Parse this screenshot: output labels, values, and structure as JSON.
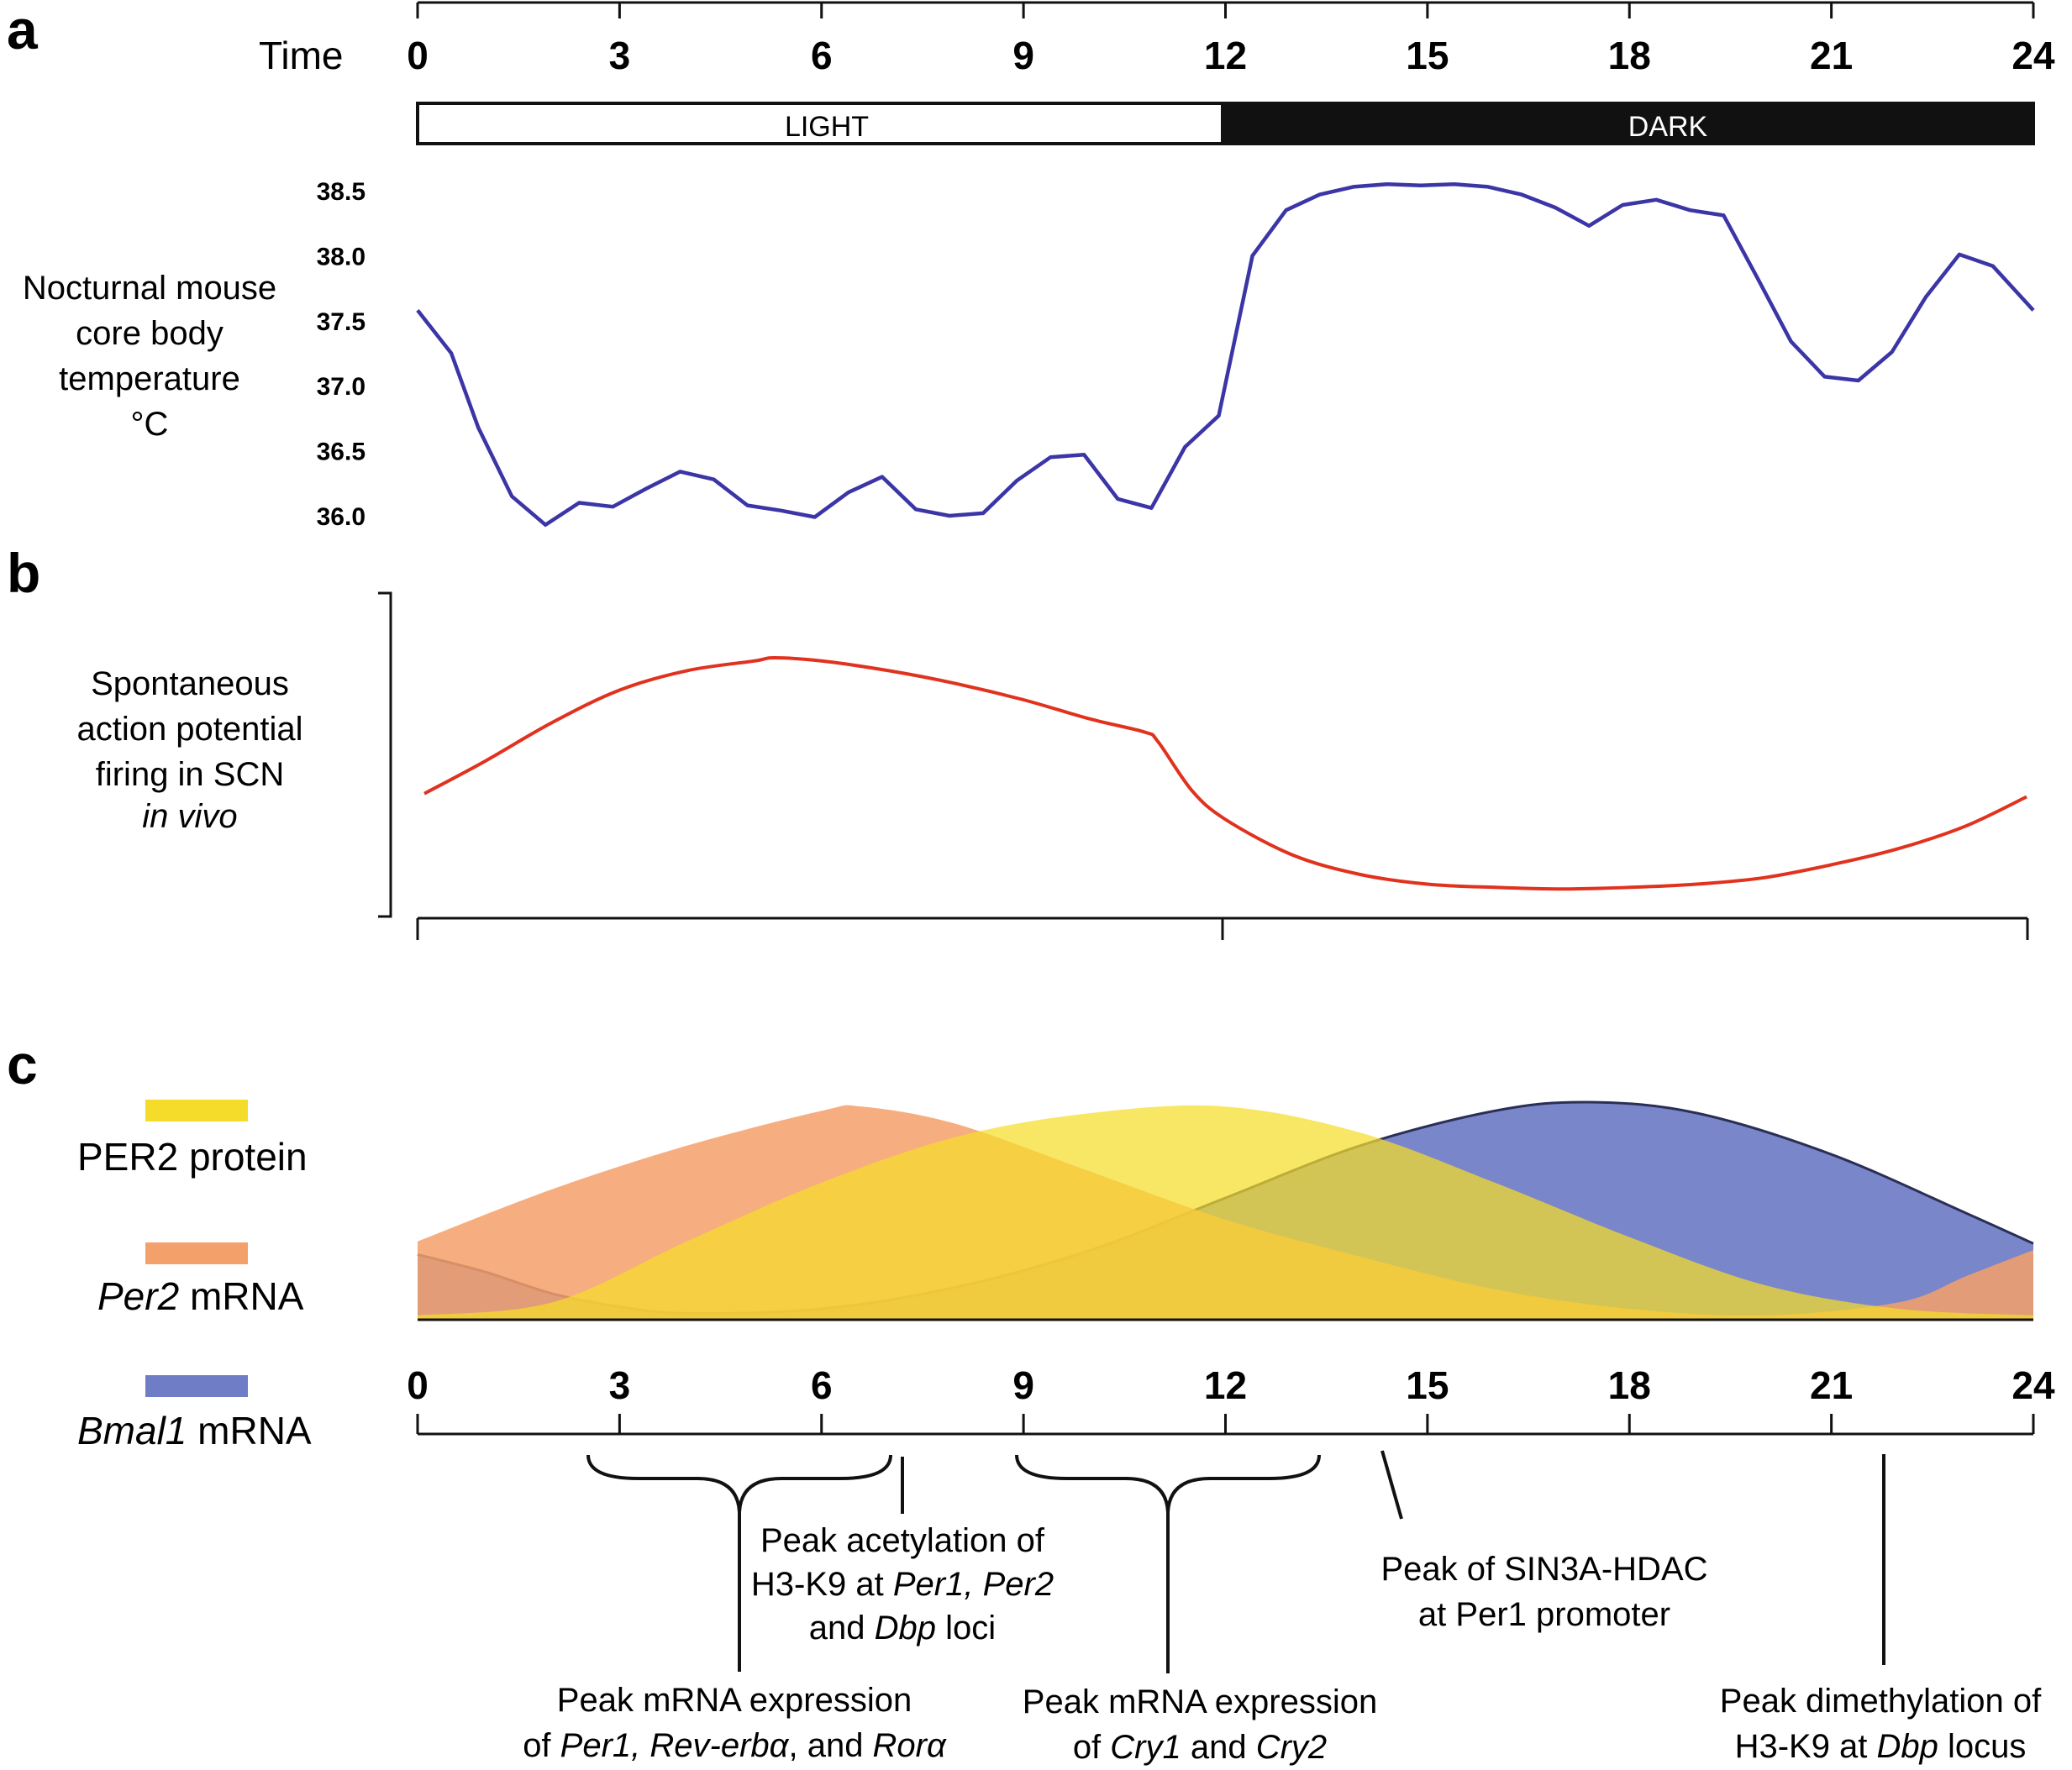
{
  "colors": {
    "temperature_line": "#3b35a6",
    "firing_line": "#e0321e",
    "per2_protein": "#f5dc2a",
    "per2_mrna": "#f4a06a",
    "bmal1_mrna": "#6f7cc6",
    "dark_band": "#111111",
    "light_band": "#ffffff"
  },
  "panels": {
    "a": {
      "letter": "a",
      "time_label": "Time",
      "light_label": "LIGHT",
      "dark_label": "DARK",
      "ylabel_lines": [
        "Nocturnal mouse",
        "core body",
        "temperature",
        "°C"
      ]
    },
    "b": {
      "letter": "b",
      "ylabel_lines": [
        "Spontaneous",
        "action potential",
        "firing in SCN"
      ],
      "ylabel_italic": "in vivo"
    },
    "c": {
      "letter": "c",
      "legend": [
        {
          "label": "PER2 protein",
          "color": "#f5dc2a"
        },
        {
          "label_italic": "Per2",
          "label": " mRNA",
          "color": "#f4a06a"
        },
        {
          "label_italic": "Bmal1",
          "label": " mRNA",
          "color": "#6f7cc6"
        }
      ],
      "annotations": {
        "acetylation": [
          "Peak acetylation of",
          "H3-K9 at ",
          "Per1, Per2",
          "and ",
          "Dbp",
          " loci"
        ],
        "per1_rev": [
          "Peak mRNA expression",
          "of ",
          "Per1, Rev-erbα",
          ", and ",
          "Rorα"
        ],
        "cry": [
          "Peak mRNA expression",
          "of ",
          "Cry1",
          " and ",
          "Cry2"
        ],
        "sin3a": [
          "Peak of SIN3A-HDAC",
          "at Per1 promoter"
        ],
        "dimethylation": [
          "Peak dimethylation of",
          "H3-K9 at ",
          "Dbp",
          " locus"
        ]
      }
    }
  },
  "chart_data": [
    {
      "panel": "a",
      "type": "line",
      "title": "",
      "xlabel": "Time",
      "ylabel": "Nocturnal mouse core body temperature °C",
      "xticks": [
        0,
        3,
        6,
        9,
        12,
        15,
        18,
        21,
        24
      ],
      "yticks": [
        36.0,
        36.5,
        37.0,
        37.5,
        38.0,
        38.5
      ],
      "xlim": [
        0,
        24
      ],
      "ylim": [
        36.0,
        38.5
      ],
      "series": [
        {
          "x": [
            0,
            0.5,
            0.9,
            1.4,
            1.9,
            2.4,
            2.9,
            3.4,
            3.9,
            4.4,
            4.9,
            5.4,
            5.9,
            6.4,
            6.9,
            7.4,
            7.9,
            8.4,
            8.9,
            9.4,
            9.9,
            10.4,
            10.9,
            11.4,
            11.9,
            12.4,
            12.9,
            13.4,
            13.9,
            14.4,
            14.9,
            15.4,
            15.9,
            16.4,
            16.9,
            17.4,
            17.9,
            18.4,
            18.9,
            19.4,
            19.9,
            20.4,
            20.9,
            21.4,
            21.9,
            22.4,
            22.9,
            23.4,
            24
          ],
          "y": [
            37.58,
            37.25,
            36.68,
            36.15,
            35.93,
            36.1,
            36.07,
            36.21,
            36.34,
            36.28,
            36.08,
            36.04,
            35.99,
            36.18,
            36.3,
            36.05,
            36.0,
            36.02,
            36.27,
            36.45,
            36.47,
            36.13,
            36.06,
            36.53,
            36.77,
            38.0,
            38.35,
            38.47,
            38.53,
            38.55,
            38.54,
            38.55,
            38.53,
            38.47,
            38.37,
            38.23,
            38.39,
            38.43,
            38.35,
            38.31,
            37.83,
            37.34,
            37.07,
            37.04,
            37.26,
            37.68,
            38.01,
            37.92,
            37.58
          ]
        }
      ]
    },
    {
      "panel": "b",
      "type": "line",
      "title": "",
      "ylabel": "Spontaneous action potential firing in SCN in vivo",
      "xticks": [
        0,
        12,
        24
      ],
      "xlim": [
        0,
        24
      ],
      "ylim": [
        0,
        1
      ],
      "series": [
        {
          "x": [
            0.1,
            1,
            2,
            3,
            4,
            5,
            5.3,
            6,
            7,
            8,
            9,
            10,
            10.8,
            11,
            11.5,
            12,
            13,
            14,
            15,
            16,
            17,
            18,
            19,
            20,
            21,
            22,
            23,
            23.9
          ],
          "y": [
            0.38,
            0.48,
            0.6,
            0.7,
            0.76,
            0.79,
            0.8,
            0.79,
            0.76,
            0.72,
            0.67,
            0.61,
            0.57,
            0.54,
            0.39,
            0.3,
            0.19,
            0.13,
            0.1,
            0.09,
            0.085,
            0.09,
            0.1,
            0.12,
            0.16,
            0.21,
            0.28,
            0.37
          ]
        }
      ]
    },
    {
      "panel": "c",
      "type": "area",
      "title": "",
      "xticks": [
        0,
        3,
        6,
        9,
        12,
        15,
        18,
        21,
        24
      ],
      "xlim": [
        0,
        24
      ],
      "ylim": [
        0,
        1
      ],
      "series": [
        {
          "name": "Per2 mRNA",
          "x": [
            0,
            2,
            4,
            6,
            6.6,
            8,
            10,
            12,
            14,
            16,
            18,
            20,
            22,
            23,
            24
          ],
          "y": [
            0.36,
            0.6,
            0.8,
            0.96,
            0.98,
            0.9,
            0.68,
            0.46,
            0.29,
            0.14,
            0.05,
            0.02,
            0.08,
            0.2,
            0.32
          ]
        },
        {
          "name": "PER2 protein",
          "x": [
            0,
            2,
            4,
            6,
            8,
            10,
            12,
            14,
            16,
            18,
            20,
            22,
            24
          ],
          "y": [
            0.02,
            0.08,
            0.36,
            0.63,
            0.84,
            0.95,
            0.98,
            0.86,
            0.63,
            0.38,
            0.16,
            0.05,
            0.02
          ]
        },
        {
          "name": "Bmal1 mRNA",
          "x": [
            0,
            1,
            2,
            3,
            4,
            6,
            8,
            10,
            12,
            14,
            16,
            17.4,
            19,
            21,
            23,
            24
          ],
          "y": [
            0.3,
            0.22,
            0.12,
            0.06,
            0.03,
            0.05,
            0.15,
            0.32,
            0.56,
            0.8,
            0.96,
            1.0,
            0.95,
            0.76,
            0.49,
            0.35
          ]
        }
      ]
    }
  ]
}
